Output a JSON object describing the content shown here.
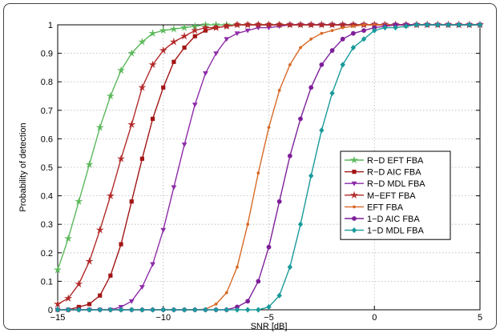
{
  "chart_data": {
    "type": "line",
    "title": "",
    "xlabel": "SNR [dB]",
    "ylabel": "Probability of detection",
    "xlim": [
      -15,
      5
    ],
    "ylim": [
      0,
      1
    ],
    "xticks": [
      -15,
      -10,
      -5,
      0,
      5
    ],
    "xtick_labels": [
      "−15",
      "−10",
      "−5",
      "0",
      "5"
    ],
    "yticks": [
      0,
      0.1,
      0.2,
      0.3,
      0.4,
      0.5,
      0.6,
      0.7,
      0.8,
      0.9,
      1
    ],
    "ytick_labels": [
      "0",
      "0.1",
      "0.2",
      "0.3",
      "0.4",
      "0.5",
      "0.6",
      "0.7",
      "0.8",
      "0.9",
      "1"
    ],
    "grid": true,
    "legend_position": "right",
    "x": [
      -15,
      -14.5,
      -14,
      -13.5,
      -13,
      -12.5,
      -12,
      -11.5,
      -11,
      -10.5,
      -10,
      -9.5,
      -9,
      -8.5,
      -8,
      -7.5,
      -7,
      -6.5,
      -6,
      -5.5,
      -5,
      -4.5,
      -4,
      -3.5,
      -3,
      -2.5,
      -2,
      -1.5,
      -1,
      -0.5,
      0,
      0.5,
      1,
      1.5,
      2,
      2.5,
      3,
      3.5,
      4,
      4.5,
      5
    ],
    "series": [
      {
        "name": "R−D EFT FBA",
        "color": "#5cb85c",
        "marker": "star",
        "values": [
          0.14,
          0.25,
          0.38,
          0.51,
          0.64,
          0.75,
          0.84,
          0.9,
          0.94,
          0.97,
          0.98,
          0.985,
          0.99,
          0.995,
          1,
          1,
          1,
          1,
          1,
          1,
          1,
          1,
          1,
          1,
          1,
          1,
          1,
          1,
          1,
          1,
          1,
          1,
          1,
          1,
          1,
          1,
          1,
          1,
          1,
          1,
          1
        ]
      },
      {
        "name": "R−D AIC FBA",
        "color": "#a31515",
        "marker": "square",
        "values": [
          0,
          0,
          0.01,
          0.02,
          0.05,
          0.12,
          0.23,
          0.38,
          0.53,
          0.67,
          0.78,
          0.87,
          0.92,
          0.96,
          0.98,
          0.99,
          0.995,
          1,
          1,
          1,
          1,
          1,
          1,
          1,
          1,
          1,
          1,
          1,
          1,
          1,
          1,
          1,
          1,
          1,
          1,
          1,
          1,
          1,
          1,
          1,
          1
        ]
      },
      {
        "name": "R−D MDL FBA",
        "color": "#8e2ca8",
        "marker": "triangle-down",
        "values": [
          0,
          0,
          0,
          0,
          0,
          0,
          0.01,
          0.03,
          0.08,
          0.16,
          0.28,
          0.43,
          0.58,
          0.72,
          0.83,
          0.9,
          0.95,
          0.97,
          0.98,
          0.99,
          0.99,
          0.995,
          1,
          1,
          1,
          1,
          1,
          1,
          1,
          1,
          1,
          1,
          1,
          1,
          1,
          1,
          1,
          1,
          1,
          1,
          1
        ]
      },
      {
        "name": "M−EFT FBA",
        "color": "#b22a2a",
        "marker": "star",
        "values": [
          0.02,
          0.04,
          0.09,
          0.17,
          0.28,
          0.4,
          0.53,
          0.65,
          0.78,
          0.86,
          0.91,
          0.94,
          0.96,
          0.98,
          0.99,
          0.99,
          0.995,
          1,
          1,
          1,
          1,
          1,
          1,
          1,
          1,
          1,
          1,
          1,
          1,
          1,
          1,
          1,
          1,
          1,
          1,
          1,
          1,
          1,
          1,
          1,
          1
        ]
      },
      {
        "name": "EFT FBA",
        "color": "#d86a28",
        "marker": "dot",
        "values": [
          0,
          0,
          0,
          0,
          0,
          0,
          0,
          0,
          0,
          0,
          0,
          0,
          0,
          0,
          0.002,
          0.02,
          0.06,
          0.15,
          0.3,
          0.48,
          0.64,
          0.77,
          0.86,
          0.92,
          0.95,
          0.97,
          0.98,
          0.99,
          0.995,
          1,
          1,
          1,
          1,
          1,
          1,
          1,
          1,
          1,
          1,
          1,
          1
        ]
      },
      {
        "name": "1−D AIC FBA",
        "color": "#7e1f9a",
        "marker": "circle",
        "values": [
          0,
          0,
          0,
          0,
          0,
          0,
          0,
          0,
          0,
          0,
          0,
          0,
          0,
          0,
          0,
          0,
          0,
          0.01,
          0.03,
          0.1,
          0.22,
          0.38,
          0.54,
          0.67,
          0.78,
          0.86,
          0.91,
          0.95,
          0.97,
          0.98,
          0.99,
          0.995,
          1,
          1,
          1,
          1,
          1,
          1,
          1,
          1,
          1
        ]
      },
      {
        "name": "1−D MDL FBA",
        "color": "#1a9a9a",
        "marker": "diamond",
        "values": [
          0,
          0,
          0,
          0,
          0,
          0,
          0,
          0,
          0,
          0,
          0,
          0,
          0,
          0,
          0,
          0,
          0,
          0,
          0,
          0,
          0.01,
          0.05,
          0.15,
          0.3,
          0.47,
          0.63,
          0.76,
          0.86,
          0.92,
          0.95,
          0.98,
          0.99,
          0.99,
          0.995,
          1,
          1,
          1,
          1,
          1,
          1,
          1
        ]
      }
    ]
  }
}
